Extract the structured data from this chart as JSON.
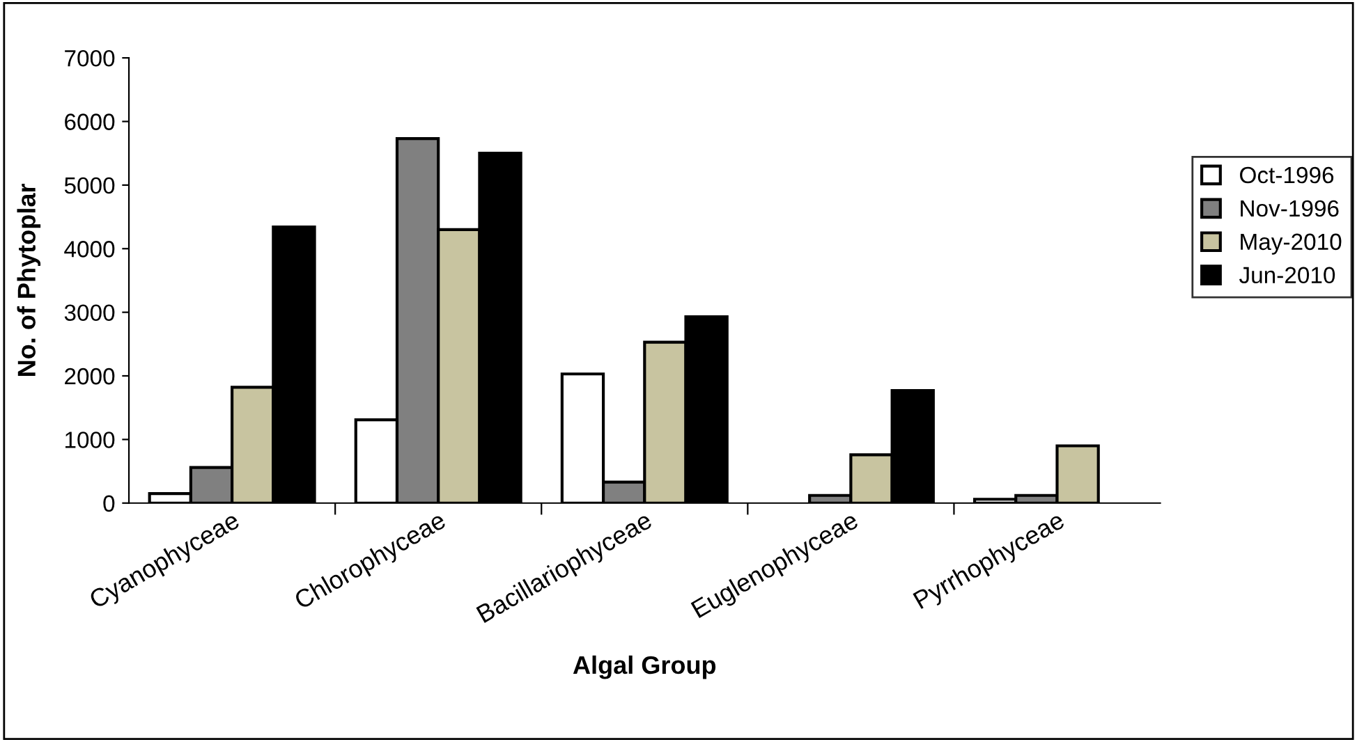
{
  "chart_data": {
    "type": "bar",
    "xlabel": "Algal Group",
    "ylabel": "No. of Phytoplar",
    "categories": [
      "Cyanophyceae",
      "Chlorophyceae",
      "Bacillariophyceae",
      "Euglenophyceae",
      "Pyrrhophyceae"
    ],
    "series": [
      {
        "name": "Oct-1996",
        "color": "#ffffff",
        "values": [
          150,
          1310,
          2030,
          0,
          60
        ]
      },
      {
        "name": "Nov-1996",
        "color": "#808080",
        "values": [
          560,
          5730,
          330,
          120,
          120
        ]
      },
      {
        "name": "May-2010",
        "color": "#c8c4a0",
        "values": [
          1820,
          4300,
          2530,
          760,
          900
        ]
      },
      {
        "name": "Jun-2010",
        "color": "#000000",
        "values": [
          4340,
          5500,
          2930,
          1770,
          0
        ]
      }
    ],
    "ylim": [
      0,
      7000
    ],
    "yticks": [
      0,
      1000,
      2000,
      3000,
      4000,
      5000,
      6000,
      7000
    ],
    "grid": false,
    "legend": "right"
  }
}
